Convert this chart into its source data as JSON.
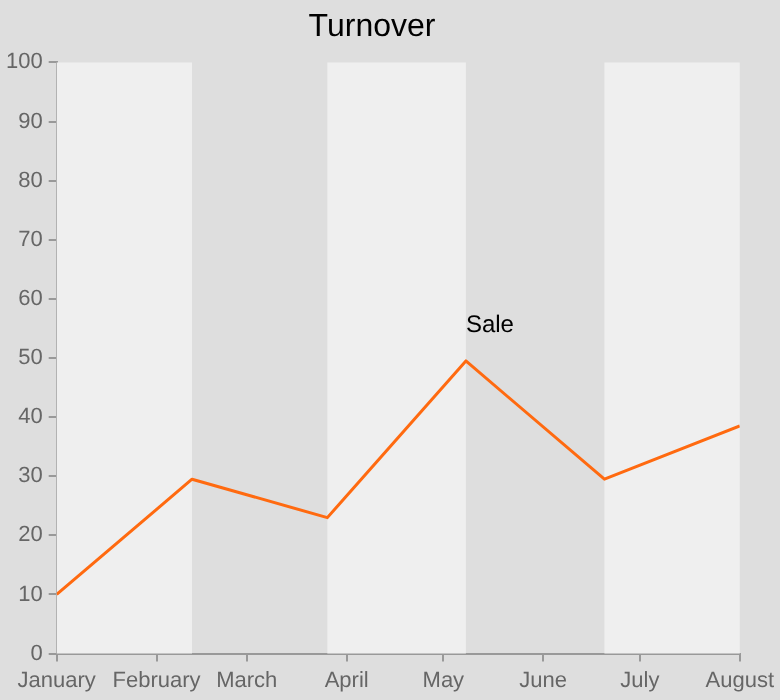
{
  "chart_data": {
    "type": "line",
    "title": "Turnover",
    "x": [
      "--01-01",
      "--02-12",
      "--03-26",
      "--05-08",
      "--06-20",
      "--08-01"
    ],
    "series": [
      {
        "color": "#ff6a10",
        "values": [
          10,
          29.5,
          23,
          49.5,
          29.5,
          38.5
        ]
      }
    ],
    "xlim": [
      "--01-01",
      "--08-01"
    ],
    "xticks": [
      {
        "value": "--01-01",
        "label": "January"
      },
      {
        "value": "--02-01",
        "label": "February"
      },
      {
        "value": "--03-01",
        "label": "March"
      },
      {
        "value": "--04-01",
        "label": "April"
      },
      {
        "value": "--05-01",
        "label": "May"
      },
      {
        "value": "--06-01",
        "label": "June"
      },
      {
        "value": "--07-01",
        "label": "July"
      },
      {
        "value": "--08-01",
        "label": "August"
      }
    ],
    "ylim": [
      0,
      100
    ],
    "yticks": [
      0,
      10,
      20,
      30,
      40,
      50,
      60,
      70,
      80,
      90,
      100
    ],
    "bands": [
      {
        "axis": "x",
        "from": "--01-01",
        "to": "--02-12",
        "color": "#efefef"
      },
      {
        "axis": "x",
        "from": "--03-26",
        "to": "--05-08",
        "color": "#efefef"
      },
      {
        "axis": "x",
        "from": "--06-20",
        "to": "--08-01",
        "color": "#efefef"
      }
    ],
    "annotations": [
      {
        "text": "Sale",
        "x": "--05-08",
        "y": 49.5
      }
    ],
    "grid": false,
    "legend": false,
    "marker": "none",
    "line_style": "solid"
  }
}
